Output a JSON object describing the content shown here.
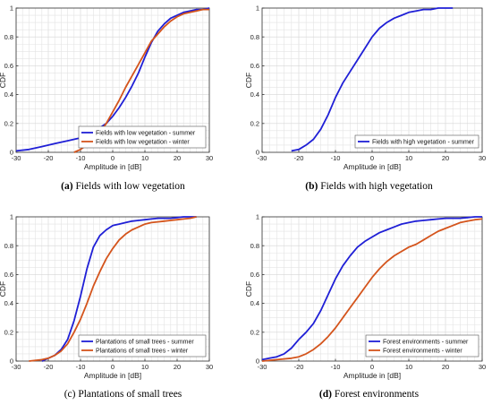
{
  "figure": {
    "captions": [
      {
        "tag": "(a)",
        "text": "Fields with low vegetation"
      },
      {
        "tag": "(b)",
        "text": "Fields with high vegetation"
      },
      {
        "tag": "(c)",
        "text": "Plantations of small trees"
      },
      {
        "tag": "(d)",
        "text": "Forest environments"
      }
    ]
  },
  "colors": {
    "summer": "#1f1fd6",
    "winter": "#d4541c",
    "grid": "#e3e3e3",
    "axis": "#333333"
  },
  "chart_data": [
    {
      "type": "line",
      "xlabel": "Amplitude in [dB]",
      "ylabel": "CDF",
      "xlim": [
        -30,
        30
      ],
      "ylim": [
        0,
        1
      ],
      "xticks": [
        -30,
        -20,
        -10,
        0,
        10,
        20,
        30
      ],
      "yticks": [
        0,
        0.2,
        0.4,
        0.6,
        0.8,
        1
      ],
      "grid": true,
      "legend_position": "bottom-right",
      "series": [
        {
          "name": "Fields with low vegetation - summer",
          "color": "#1f1fd6",
          "x": [
            -30,
            -26,
            -22,
            -18,
            -14,
            -10,
            -8,
            -6,
            -4,
            -2,
            0,
            2,
            4,
            6,
            8,
            10,
            12,
            14,
            16,
            18,
            20,
            22,
            24,
            26,
            28,
            30
          ],
          "y": [
            0.01,
            0.02,
            0.04,
            0.06,
            0.08,
            0.1,
            0.12,
            0.14,
            0.17,
            0.2,
            0.25,
            0.31,
            0.38,
            0.46,
            0.55,
            0.66,
            0.76,
            0.84,
            0.89,
            0.93,
            0.95,
            0.97,
            0.98,
            0.99,
            0.99,
            1.0
          ]
        },
        {
          "name": "Fields with low vegetation - winter",
          "color": "#d4541c",
          "x": [
            -12,
            -10,
            -8,
            -6,
            -4,
            -2,
            0,
            2,
            4,
            6,
            8,
            10,
            12,
            14,
            16,
            18,
            20,
            22,
            24,
            26,
            28,
            30
          ],
          "y": [
            0.0,
            0.02,
            0.05,
            0.09,
            0.14,
            0.2,
            0.28,
            0.36,
            0.45,
            0.53,
            0.61,
            0.69,
            0.77,
            0.82,
            0.87,
            0.91,
            0.94,
            0.96,
            0.97,
            0.98,
            0.99,
            0.99
          ]
        }
      ]
    },
    {
      "type": "line",
      "xlabel": "Amplitude in [dB]",
      "ylabel": "CDF",
      "xlim": [
        -30,
        30
      ],
      "ylim": [
        0,
        1
      ],
      "xticks": [
        -30,
        -20,
        -10,
        0,
        10,
        20,
        30
      ],
      "yticks": [
        0,
        0.2,
        0.4,
        0.6,
        0.8,
        1
      ],
      "grid": true,
      "legend_position": "bottom-right",
      "series": [
        {
          "name": "Fields with high vegetation - summer",
          "color": "#1f1fd6",
          "x": [
            -22,
            -20,
            -18,
            -16,
            -14,
            -12,
            -10,
            -8,
            -6,
            -4,
            -2,
            0,
            2,
            4,
            6,
            8,
            10,
            12,
            14,
            16,
            18,
            20,
            22
          ],
          "y": [
            0.01,
            0.02,
            0.05,
            0.09,
            0.16,
            0.26,
            0.38,
            0.48,
            0.56,
            0.64,
            0.72,
            0.8,
            0.86,
            0.9,
            0.93,
            0.95,
            0.97,
            0.98,
            0.99,
            0.99,
            1.0,
            1.0,
            1.0
          ]
        }
      ]
    },
    {
      "type": "line",
      "xlabel": "Amplitude in [dB]",
      "ylabel": "CDF",
      "xlim": [
        -30,
        30
      ],
      "ylim": [
        0,
        1
      ],
      "xticks": [
        -30,
        -20,
        -10,
        0,
        10,
        20,
        30
      ],
      "yticks": [
        0,
        0.2,
        0.4,
        0.6,
        0.8,
        1
      ],
      "grid": true,
      "legend_position": "bottom-right",
      "series": [
        {
          "name": "Plantations of small trees - summer",
          "color": "#1f1fd6",
          "x": [
            -22,
            -20,
            -18,
            -16,
            -14,
            -12,
            -10,
            -8,
            -6,
            -4,
            -2,
            0,
            2,
            4,
            6,
            8,
            10,
            12,
            14,
            16,
            18,
            20,
            22,
            24,
            26
          ],
          "y": [
            0.0,
            0.02,
            0.04,
            0.08,
            0.15,
            0.28,
            0.45,
            0.64,
            0.79,
            0.87,
            0.91,
            0.94,
            0.95,
            0.96,
            0.97,
            0.975,
            0.98,
            0.985,
            0.99,
            0.99,
            0.99,
            0.995,
            1.0,
            1.0,
            1.0
          ]
        },
        {
          "name": "Plantations of small trees - winter",
          "color": "#d4541c",
          "x": [
            -26,
            -22,
            -20,
            -18,
            -16,
            -14,
            -12,
            -10,
            -8,
            -6,
            -4,
            -2,
            0,
            2,
            4,
            6,
            8,
            10,
            12,
            14,
            16,
            18,
            20,
            22,
            24,
            26
          ],
          "y": [
            0.0,
            0.01,
            0.02,
            0.04,
            0.07,
            0.12,
            0.2,
            0.29,
            0.4,
            0.52,
            0.62,
            0.71,
            0.78,
            0.84,
            0.88,
            0.91,
            0.93,
            0.95,
            0.96,
            0.965,
            0.97,
            0.975,
            0.98,
            0.985,
            0.99,
            1.0
          ]
        }
      ]
    },
    {
      "type": "line",
      "xlabel": "Amplitude in [dB]",
      "ylabel": "CDF",
      "xlim": [
        -30,
        30
      ],
      "ylim": [
        0,
        1
      ],
      "xticks": [
        -30,
        -20,
        -10,
        0,
        10,
        20,
        30
      ],
      "yticks": [
        0,
        0.2,
        0.4,
        0.6,
        0.8,
        1
      ],
      "grid": true,
      "legend_position": "bottom-right",
      "series": [
        {
          "name": "Forest environments - summer",
          "color": "#1f1fd6",
          "x": [
            -30,
            -28,
            -26,
            -24,
            -22,
            -20,
            -18,
            -16,
            -14,
            -12,
            -10,
            -8,
            -6,
            -4,
            -2,
            0,
            2,
            4,
            6,
            8,
            10,
            12,
            14,
            16,
            18,
            20,
            22,
            24,
            26,
            28,
            30
          ],
          "y": [
            0.01,
            0.02,
            0.03,
            0.05,
            0.09,
            0.15,
            0.2,
            0.26,
            0.35,
            0.46,
            0.57,
            0.66,
            0.73,
            0.79,
            0.83,
            0.86,
            0.89,
            0.91,
            0.93,
            0.95,
            0.96,
            0.97,
            0.975,
            0.98,
            0.985,
            0.99,
            0.99,
            0.99,
            0.995,
            1.0,
            1.0
          ]
        },
        {
          "name": "Forest environments - winter",
          "color": "#d4541c",
          "x": [
            -30,
            -26,
            -22,
            -20,
            -18,
            -16,
            -14,
            -12,
            -10,
            -8,
            -6,
            -4,
            -2,
            0,
            2,
            4,
            6,
            8,
            10,
            12,
            14,
            16,
            18,
            20,
            22,
            24,
            26,
            28,
            30
          ],
          "y": [
            0.0,
            0.01,
            0.02,
            0.03,
            0.05,
            0.08,
            0.12,
            0.17,
            0.23,
            0.3,
            0.37,
            0.44,
            0.51,
            0.58,
            0.64,
            0.69,
            0.73,
            0.76,
            0.79,
            0.81,
            0.84,
            0.87,
            0.9,
            0.92,
            0.94,
            0.96,
            0.97,
            0.98,
            0.985
          ]
        }
      ]
    }
  ]
}
